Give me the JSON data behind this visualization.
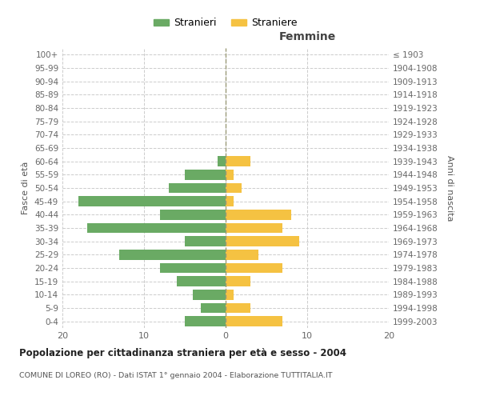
{
  "age_groups": [
    "0-4",
    "5-9",
    "10-14",
    "15-19",
    "20-24",
    "25-29",
    "30-34",
    "35-39",
    "40-44",
    "45-49",
    "50-54",
    "55-59",
    "60-64",
    "65-69",
    "70-74",
    "75-79",
    "80-84",
    "85-89",
    "90-94",
    "95-99",
    "100+"
  ],
  "birth_years": [
    "1999-2003",
    "1994-1998",
    "1989-1993",
    "1984-1988",
    "1979-1983",
    "1974-1978",
    "1969-1973",
    "1964-1968",
    "1959-1963",
    "1954-1958",
    "1949-1953",
    "1944-1948",
    "1939-1943",
    "1934-1938",
    "1929-1933",
    "1924-1928",
    "1919-1923",
    "1914-1918",
    "1909-1913",
    "1904-1908",
    "≤ 1903"
  ],
  "males": [
    5,
    3,
    4,
    6,
    8,
    13,
    5,
    17,
    8,
    18,
    7,
    5,
    1,
    0,
    0,
    0,
    0,
    0,
    0,
    0,
    0
  ],
  "females": [
    7,
    3,
    1,
    3,
    7,
    4,
    9,
    7,
    8,
    1,
    2,
    1,
    3,
    0,
    0,
    0,
    0,
    0,
    0,
    0,
    0
  ],
  "male_color": "#6aaa64",
  "female_color": "#f5c242",
  "male_label": "Stranieri",
  "female_label": "Straniere",
  "title_main": "Popolazione per cittadinanza straniera per età e sesso - 2004",
  "title_sub": "COMUNE DI LOREO (RO) - Dati ISTAT 1° gennaio 2004 - Elaborazione TUTTITALIA.IT",
  "xlabel_right": "Femmine",
  "ylabel_left": "Fasce di età",
  "ylabel_right": "Anni di nascita",
  "xlim": 20,
  "background_color": "#ffffff",
  "grid_color": "#cccccc"
}
